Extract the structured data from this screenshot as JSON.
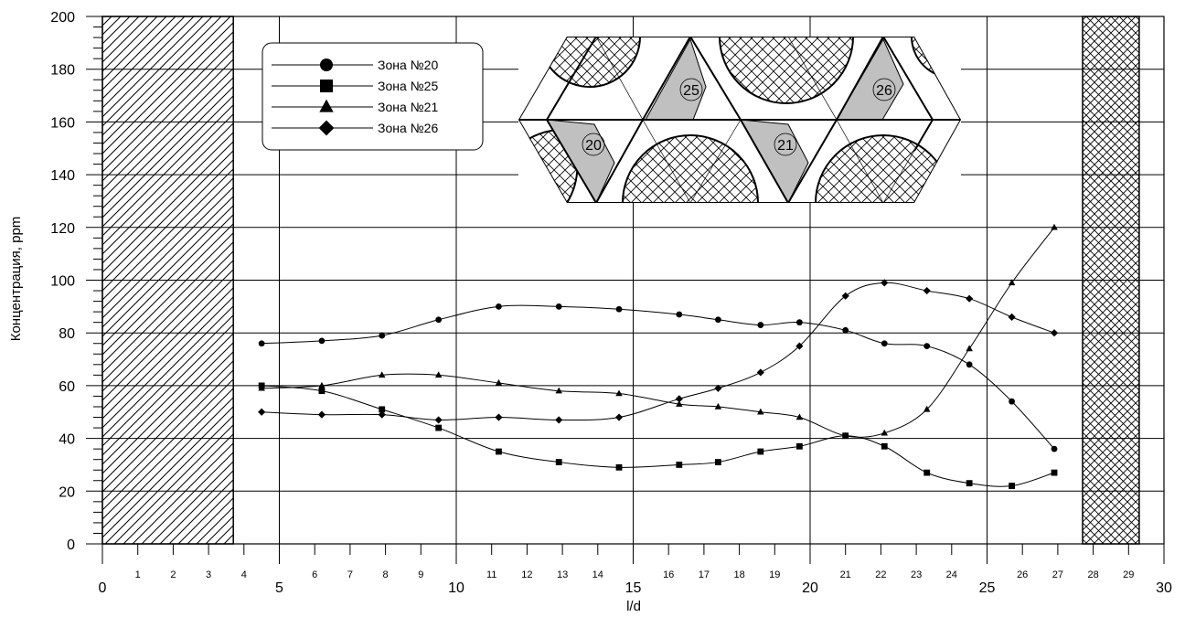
{
  "chart_data": {
    "type": "line",
    "title": "",
    "xlabel": "l/d",
    "ylabel": "Концентрация, ppm",
    "xlim": [
      0,
      30
    ],
    "ylim": [
      0,
      200
    ],
    "x_major_ticks": [
      0,
      5,
      10,
      15,
      20,
      25,
      30
    ],
    "x_minor_ticks": [
      1,
      2,
      3,
      4,
      6,
      7,
      8,
      9,
      11,
      12,
      13,
      14,
      16,
      17,
      18,
      19,
      21,
      22,
      23,
      24,
      26,
      27,
      28,
      29
    ],
    "y_ticks": [
      0,
      20,
      40,
      60,
      80,
      100,
      120,
      140,
      160,
      180,
      200
    ],
    "grid": true,
    "legend_position": "top-left",
    "hatched_regions": [
      {
        "from": 0,
        "to": 3.7,
        "pattern": "diagonal"
      },
      {
        "from": 27.7,
        "to": 29.3,
        "pattern": "crosshatch"
      }
    ],
    "series": [
      {
        "name": "Зона №20",
        "marker": "circle",
        "x": [
          4.5,
          6.2,
          7.9,
          9.5,
          11.2,
          12.9,
          14.6,
          16.3,
          17.4,
          18.6,
          19.7,
          21.0,
          22.1,
          23.3,
          24.5,
          25.7,
          26.9
        ],
        "y": [
          76,
          77,
          79,
          85,
          90,
          90,
          89,
          87,
          85,
          83,
          84,
          81,
          76,
          75,
          68,
          54,
          36
        ]
      },
      {
        "name": "Зона №25",
        "marker": "square",
        "x": [
          4.5,
          6.2,
          7.9,
          9.5,
          11.2,
          12.9,
          14.6,
          16.3,
          17.4,
          18.6,
          19.7,
          21.0,
          22.1,
          23.3,
          24.5,
          25.7,
          26.9
        ],
        "y": [
          60,
          58,
          51,
          44,
          35,
          31,
          29,
          30,
          31,
          35,
          37,
          41,
          37,
          27,
          23,
          22,
          27
        ]
      },
      {
        "name": "Зона №21",
        "marker": "triangle",
        "x": [
          4.5,
          6.2,
          7.9,
          9.5,
          11.2,
          12.9,
          14.6,
          16.3,
          17.4,
          18.6,
          19.7,
          21.0,
          22.1,
          23.3,
          24.5,
          25.7,
          26.9
        ],
        "y": [
          59,
          60,
          64,
          64,
          61,
          58,
          57,
          53,
          52,
          50,
          48,
          41,
          42,
          51,
          74,
          99,
          120
        ]
      },
      {
        "name": "Зона №26",
        "marker": "diamond",
        "x": [
          4.5,
          6.2,
          7.9,
          9.5,
          11.2,
          12.9,
          14.6,
          16.3,
          17.4,
          18.6,
          19.7,
          21.0,
          22.1,
          23.3,
          24.5,
          25.7,
          26.9
        ],
        "y": [
          50,
          49,
          49,
          47,
          48,
          47,
          48,
          55,
          59,
          65,
          75,
          94,
          99,
          96,
          93,
          86,
          80
        ]
      }
    ],
    "inset_zone_labels": [
      "25",
      "26",
      "20",
      "21"
    ]
  }
}
